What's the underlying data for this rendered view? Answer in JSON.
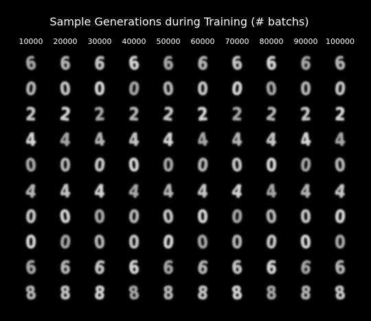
{
  "title": "Sample Generations during Training (# batchs)",
  "columns": [
    "10000",
    "20000",
    "30000",
    "40000",
    "50000",
    "60000",
    "70000",
    "80000",
    "90000",
    "100000"
  ],
  "row_digits": [
    "6",
    "0",
    "2",
    "4",
    "0",
    "4",
    "0",
    "0",
    "6",
    "8"
  ],
  "colors": {
    "background": "#000000",
    "text": "#ffffff",
    "digit": "#e8e8e8"
  }
}
